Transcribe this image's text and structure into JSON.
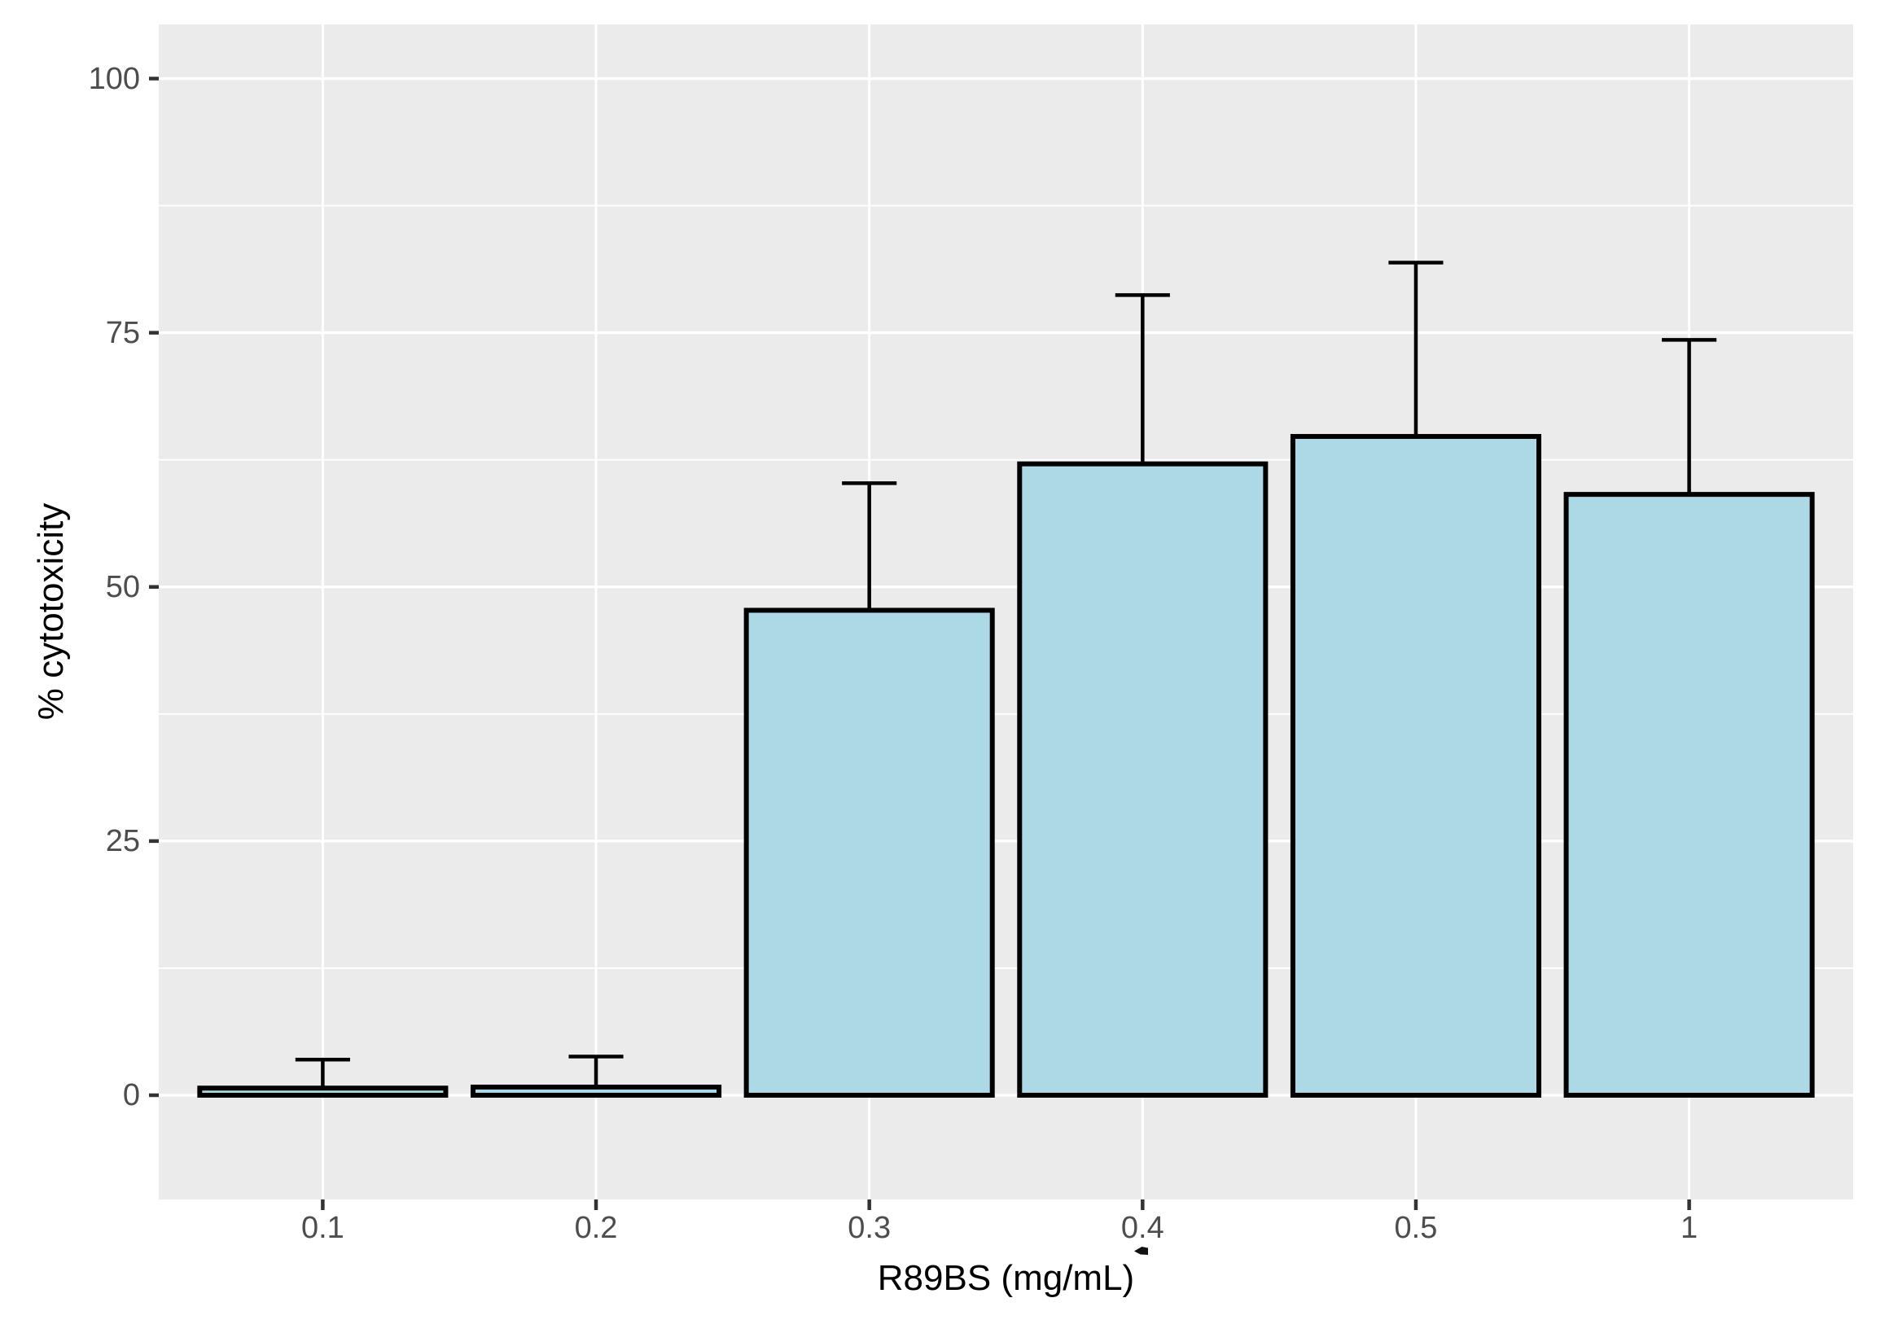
{
  "chart_data": {
    "type": "bar",
    "title": "",
    "xlabel": "R89BS (mg/mL)",
    "ylabel": "% cytotoxicity",
    "categories": [
      "0.1",
      "0.2",
      "0.3",
      "0.4",
      "0.5",
      "1"
    ],
    "series": [
      {
        "name": "% cytotoxicity",
        "values": [
          0.7,
          0.8,
          47.7,
          62.1,
          64.8,
          59.1
        ],
        "error_bar_tops": [
          3.5,
          3.8,
          60.2,
          78.7,
          81.9,
          74.3
        ]
      }
    ],
    "y_axis": {
      "major_ticks": [
        0,
        25,
        50,
        75,
        100
      ],
      "minor_gridlines": [
        12.5,
        37.5,
        62.5,
        87.5
      ],
      "range": [
        -10.3,
        105.4
      ]
    },
    "legend": "none",
    "grid": "on",
    "style": {
      "panel_background": "#EBEBEB",
      "gridline_color": "#FFFFFF",
      "bar_fill": "#ADD8E6",
      "bar_outline": "#000000",
      "errorbar_color": "#000000",
      "tick_mark_color": "#333333",
      "tick_label_color": "#4D4D4D",
      "axis_title_color": "#000000"
    },
    "annotations": [
      {
        "type": "stray-ink-mark",
        "position": "below x-axis tick label 0.4"
      }
    ]
  }
}
